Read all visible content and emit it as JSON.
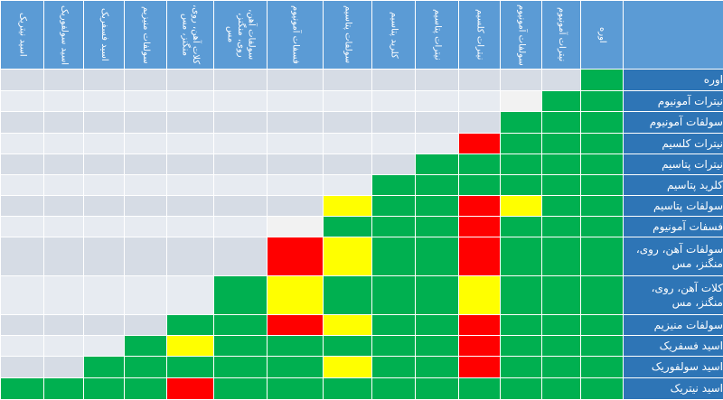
{
  "columns": [
    "اسید نیتریک",
    "اسید سولفوریک",
    "اسید فسفریک",
    "سولفات منیزیم",
    "کلات آهن، روی، منگنز، مس",
    "سولفات آهن، روی، منگنز، مس",
    "فسفات آمونیوم",
    "سولفات پتاسیم",
    "کلرید پتاسیم",
    "نیترات پتاسیم",
    "نیترات کلسیم",
    "سولفات آمونیوم",
    "نیترات آمونیوم",
    "اوره"
  ],
  "rows": [
    {
      "label": "اوره",
      "cells": [
        "B",
        "B",
        "B",
        "B",
        "B",
        "B",
        "B",
        "B",
        "B",
        "B",
        "B",
        "B",
        "B",
        "G"
      ]
    },
    {
      "label": "نیترات آمونیوم",
      "cells": [
        "L",
        "L",
        "L",
        "L",
        "L",
        "L",
        "L",
        "L",
        "L",
        "L",
        "L",
        "W",
        "G",
        "G"
      ]
    },
    {
      "label": "سولفات آمونیوم",
      "cells": [
        "B",
        "B",
        "B",
        "B",
        "B",
        "B",
        "B",
        "B",
        "B",
        "B",
        "B",
        "G",
        "G",
        "G"
      ]
    },
    {
      "label": "نیترات کلسیم",
      "cells": [
        "L",
        "L",
        "L",
        "L",
        "L",
        "L",
        "L",
        "L",
        "L",
        "L",
        "R",
        "G",
        "G",
        "G"
      ]
    },
    {
      "label": "نیترات پتاسیم",
      "cells": [
        "B",
        "B",
        "B",
        "B",
        "B",
        "B",
        "B",
        "B",
        "B",
        "G",
        "G",
        "G",
        "G",
        "G"
      ]
    },
    {
      "label": "کلرید پتاسیم",
      "cells": [
        "L",
        "L",
        "L",
        "L",
        "L",
        "L",
        "L",
        "L",
        "G",
        "G",
        "G",
        "G",
        "G",
        "G"
      ]
    },
    {
      "label": "سولفات پتاسیم",
      "cells": [
        "B",
        "B",
        "B",
        "B",
        "B",
        "B",
        "B",
        "Y",
        "G",
        "G",
        "R",
        "Y",
        "G",
        "G"
      ]
    },
    {
      "label": "فسفات آمونیوم",
      "cells": [
        "L",
        "L",
        "L",
        "L",
        "L",
        "L",
        "W",
        "G",
        "G",
        "G",
        "R",
        "G",
        "G",
        "G"
      ]
    },
    {
      "label": "سولفات آهن، روی، منگنز، مس",
      "cells": [
        "B",
        "B",
        "B",
        "B",
        "B",
        "B",
        "R",
        "Y",
        "G",
        "G",
        "R",
        "G",
        "G",
        "G"
      ]
    },
    {
      "label": "کلات آهن، روی، منگنز، مس",
      "cells": [
        "L",
        "L",
        "L",
        "L",
        "L",
        "G",
        "Y",
        "G",
        "G",
        "G",
        "Y",
        "G",
        "G",
        "G"
      ]
    },
    {
      "label": "سولفات منیزیم",
      "cells": [
        "B",
        "B",
        "B",
        "B",
        "G",
        "G",
        "R",
        "Y",
        "G",
        "G",
        "R",
        "G",
        "G",
        "G"
      ]
    },
    {
      "label": "اسید فسفریک",
      "cells": [
        "L",
        "L",
        "L",
        "G",
        "Y",
        "G",
        "G",
        "G",
        "G",
        "G",
        "R",
        "G",
        "G",
        "G"
      ]
    },
    {
      "label": "اسید سولفوریک",
      "cells": [
        "B",
        "B",
        "G",
        "G",
        "G",
        "G",
        "G",
        "Y",
        "G",
        "G",
        "R",
        "G",
        "G",
        "G"
      ]
    },
    {
      "label": "اسید نیتریک",
      "cells": [
        "G",
        "G",
        "G",
        "G",
        "R",
        "G",
        "G",
        "G",
        "G",
        "G",
        "G",
        "G",
        "G",
        "G"
      ]
    }
  ]
}
